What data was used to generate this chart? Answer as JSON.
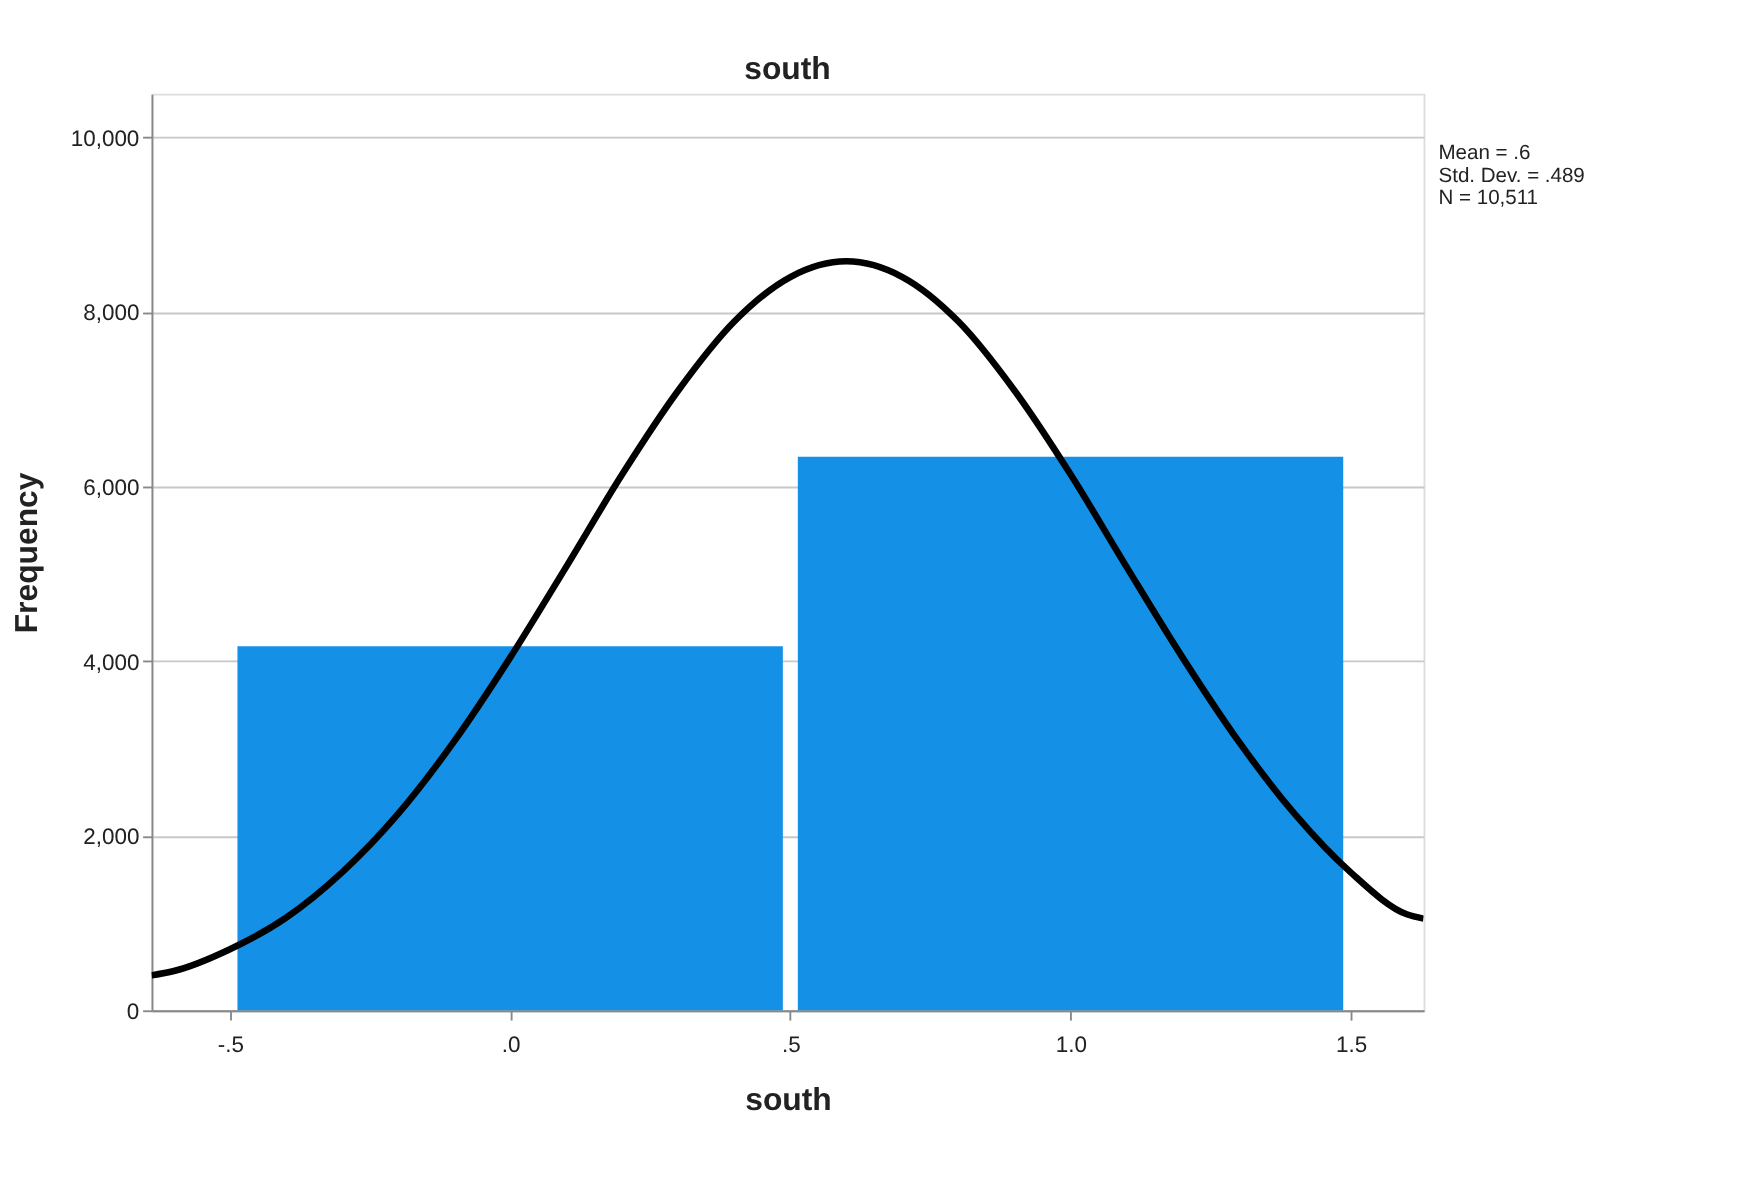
{
  "chart_data": {
    "type": "histogram",
    "title": "south",
    "xlabel": "south",
    "ylabel": "Frequency",
    "bins": [
      -0.5,
      0.5,
      1.5
    ],
    "values": [
      4170,
      6340
    ],
    "color": "#1490e6",
    "series": [
      {
        "type": "line",
        "color": "#000000",
        "x": [
          -0.64,
          -0.6,
          -0.5,
          -0.4,
          -0.3,
          -0.2,
          -0.1,
          0,
          0.1,
          0.2,
          0.3,
          0.4,
          0.5,
          0.6,
          0.7,
          0.8,
          0.9,
          1.0,
          1.1,
          1.2,
          1.3,
          1.4,
          1.5,
          1.6,
          1.63
        ],
        "values": [
          400,
          450,
          700,
          1060,
          1580,
          2250,
          3080,
          4040,
          5080,
          6140,
          7100,
          7890,
          8400,
          8580,
          8400,
          7890,
          7100,
          6140,
          5080,
          4040,
          3080,
          2250,
          1580,
          1100,
          1050
        ]
      }
    ],
    "xlim": [
      -0.64,
      1.63
    ],
    "xticks": [
      {
        "value": -0.5,
        "label": "-.5"
      },
      {
        "value": 0,
        "label": ".0"
      },
      {
        "value": 0.5,
        "label": ".5"
      },
      {
        "value": 1.0,
        "label": "1.0"
      },
      {
        "value": 1.5,
        "label": "1.5"
      }
    ],
    "ylim": [
      0,
      10500
    ],
    "yticks": [
      0,
      {
        "value": 2000,
        "label": "2,000"
      },
      {
        "value": 4000,
        "label": "4,000"
      },
      {
        "value": 6000,
        "label": "6,000"
      },
      {
        "value": 8000,
        "label": "8,000"
      },
      {
        "value": 10000,
        "label": "10,000"
      }
    ],
    "grid": "y",
    "line_style": "solid",
    "annotations": [
      "Mean = .6",
      "Std. Dev. = .489",
      "N = 10,511"
    ]
  }
}
